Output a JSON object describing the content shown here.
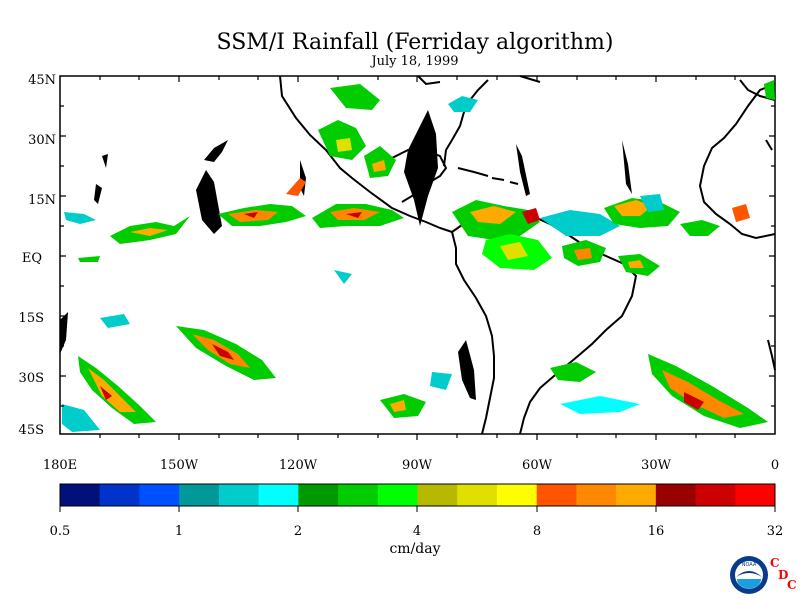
{
  "title": "SSM/I Rainfall (Ferriday algorithm)",
  "subtitle": "July 18, 1999",
  "lat_labels": [
    "45N",
    "30N",
    "15N",
    "EQ",
    "15S",
    "30S",
    "45S"
  ],
  "lon_labels": [
    "180E",
    "150W",
    "120W",
    "90W",
    "60W",
    "30W",
    "0"
  ],
  "colorbar": {
    "colors": [
      "#00127a",
      "#0033cc",
      "#0050ff",
      "#009999",
      "#00cccc",
      "#00ffff",
      "#009900",
      "#00cc00",
      "#00ff00",
      "#b8b800",
      "#e0e000",
      "#ffff00",
      "#ff5500",
      "#ff8800",
      "#ffaa00",
      "#990000",
      "#cc0000",
      "#ff0000"
    ],
    "tick_labels": [
      "0.5",
      "1",
      "2",
      "4",
      "8",
      "16",
      "32"
    ],
    "unit": "cm/day"
  },
  "logo": {
    "text": "NOAA",
    "letters": [
      "C",
      "D",
      "C"
    ]
  }
}
